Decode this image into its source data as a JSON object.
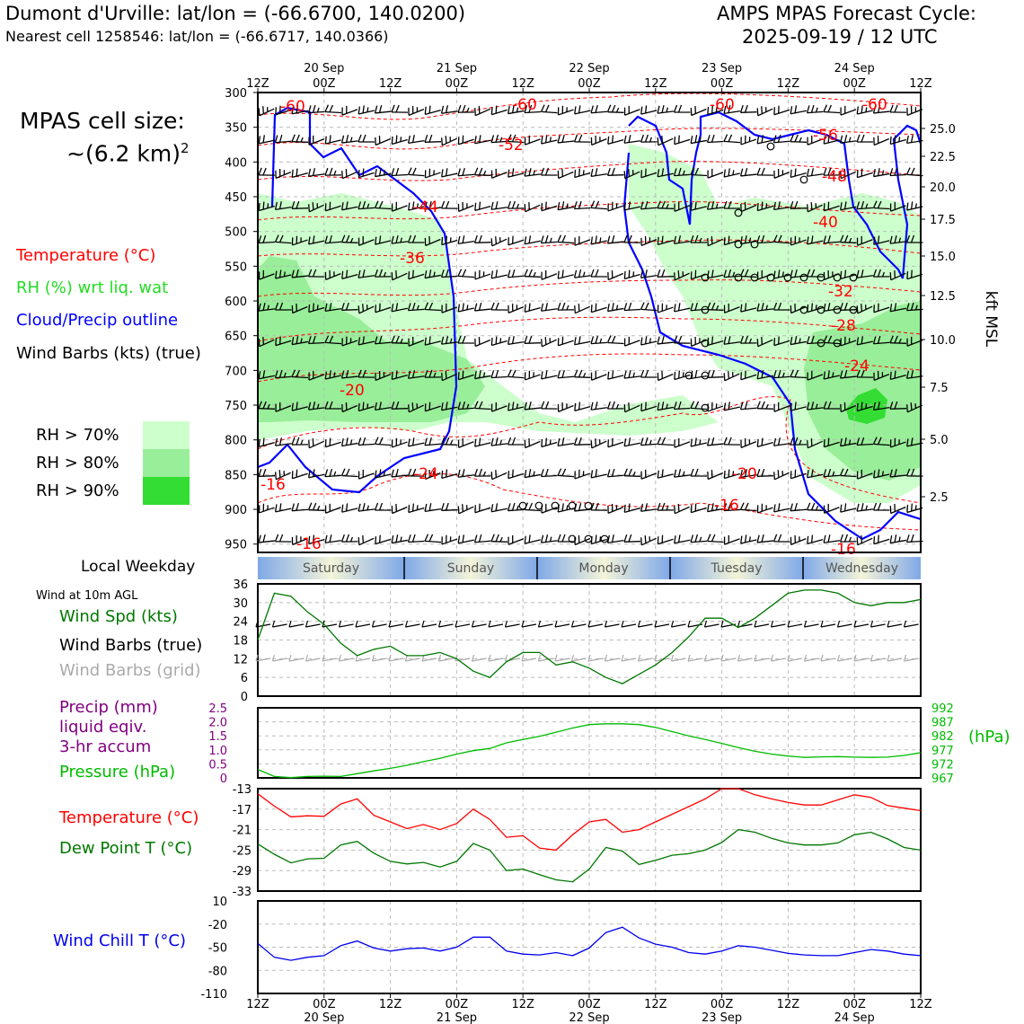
{
  "header": {
    "title": "Dumont d'Urville: lat/lon = (-66.6700, 140.0200)",
    "subtitle": "Nearest cell 1258546: lat/lon = (-66.6717, 140.0366)",
    "cycle_line1": "AMPS MPAS Forecast Cycle:",
    "cycle_line2": "2025-09-19 / 12 UTC"
  },
  "cell": {
    "line1": "MPAS cell size:",
    "line2": "~(6.2 km)",
    "sup": "2"
  },
  "legend": {
    "temperature": "Temperature (°C)",
    "rh": "RH (%) wrt liq. wat",
    "cloud": "Cloud/Precip outline",
    "barbs": "Wind Barbs (kts) (true)",
    "rh70": "RH > 70%",
    "rh80": "RH > 80%",
    "rh90": "RH > 90%"
  },
  "weekday": {
    "label": "Local Weekday",
    "days": [
      "Saturday",
      "Sunday",
      "Monday",
      "Tuesday",
      "Wednesday"
    ]
  },
  "wind_panel": {
    "heading": "Wind at 10m AGL",
    "spd": "Wind Spd (kts)",
    "barbs_true": "Wind Barbs (true)",
    "barbs_grid": "Wind Barbs (grid)"
  },
  "precip_panel": {
    "precip1": "Precip (mm)",
    "precip2": "liquid eqiv.",
    "precip3": "3-hr accum",
    "pressure": "Pressure (hPa)",
    "unit": "(hPa)"
  },
  "temp_panel": {
    "temp": "Temperature (°C)",
    "dew": "Dew Point T (°C)"
  },
  "chill_panel": {
    "label": "Wind Chill T (°C)"
  },
  "colors": {
    "temperature": "#ff0000",
    "rh": "#00cc00",
    "cloud": "#0000ff",
    "wind": "#007700",
    "precip": "#800080",
    "pressure": "#00aa00",
    "dew": "#007700",
    "chill": "#0000ee",
    "rh70": "#ccffcc",
    "rh80": "#99ee99",
    "rh90": "#33dd33"
  },
  "chart_data": [
    {
      "type": "heatmap",
      "x_ticks": [
        "12Z",
        "00Z",
        "12Z",
        "00Z",
        "12Z",
        "00Z",
        "12Z",
        "00Z",
        "12Z",
        "00Z",
        "12Z"
      ],
      "x_dates": [
        "20 Sep",
        "21 Sep",
        "22 Sep",
        "23 Sep",
        "24 Sep"
      ],
      "y_ticks": [
        300,
        350,
        400,
        450,
        500,
        550,
        600,
        650,
        700,
        750,
        800,
        850,
        900,
        950
      ],
      "y2_ticks": [
        "25.0",
        "22.5",
        "20.0",
        "17.5",
        "15.0",
        "12.5",
        "10.0",
        "7.5",
        "5.0",
        "2.5"
      ],
      "y2_label": "kft MSL",
      "temperature_labels": [
        "-60",
        "-60",
        "-60",
        "-60",
        "-56",
        "-52",
        "-48",
        "-44",
        "-40",
        "-36",
        "-32",
        "-28",
        "-24",
        "-24",
        "-20",
        "-20",
        "-16",
        "-16",
        "-16",
        "-16"
      ]
    },
    {
      "type": "line",
      "name": "Wind Spd (kts)",
      "ylim": [
        0,
        36
      ],
      "y_ticks": [
        0,
        6,
        12,
        18,
        24,
        30,
        36
      ],
      "x_hours": [
        0,
        3,
        6,
        9,
        12,
        15,
        18,
        21,
        24,
        27,
        30,
        33,
        36,
        39,
        42,
        45,
        48,
        51,
        54,
        57,
        60,
        63,
        66,
        69,
        72,
        75,
        78,
        81,
        84,
        87,
        90,
        93,
        96,
        99,
        102,
        105,
        108,
        111,
        114,
        117,
        120
      ],
      "values": [
        18,
        33,
        32,
        27,
        23,
        17,
        13,
        15,
        16,
        13,
        13,
        14,
        12,
        8,
        6,
        11,
        14,
        14,
        10,
        11,
        9,
        6,
        4,
        7,
        10,
        14,
        19,
        25,
        25,
        22,
        25,
        29,
        33,
        34,
        34,
        33,
        30,
        29,
        30,
        30,
        31
      ]
    },
    {
      "type": "line",
      "name": "Pressure (hPa)",
      "y_ticks": [
        "0",
        "0.5",
        "1.0",
        "1.5",
        "2.0",
        "2.5"
      ],
      "y2_ticks": [
        "967",
        "972",
        "977",
        "982",
        "987",
        "992"
      ],
      "y2lim": [
        967,
        992
      ],
      "x_hours": [
        0,
        3,
        6,
        9,
        12,
        15,
        18,
        21,
        24,
        27,
        30,
        33,
        36,
        39,
        42,
        45,
        48,
        51,
        54,
        57,
        60,
        63,
        66,
        69,
        72,
        75,
        78,
        81,
        84,
        87,
        90,
        93,
        96,
        99,
        102,
        105,
        108,
        111,
        114,
        117,
        120
      ],
      "values": [
        970,
        967.5,
        967.1,
        967.5,
        967.6,
        967.5,
        968.5,
        969.5,
        970.4,
        971.5,
        972.8,
        974,
        975.5,
        976.7,
        977.5,
        979.5,
        980.7,
        981.8,
        983.3,
        984.8,
        986,
        986.3,
        986.3,
        986,
        985,
        983.5,
        982,
        980.7,
        979.3,
        977.8,
        976.5,
        975.5,
        974.8,
        974.3,
        974.5,
        974.6,
        974.4,
        974.3,
        974.4,
        975,
        976
      ]
    },
    {
      "type": "line",
      "ylim": [
        -33,
        -13
      ],
      "y_ticks": [
        -13,
        -17,
        -21,
        -25,
        -29,
        -33
      ],
      "x_hours": [
        0,
        3,
        6,
        9,
        12,
        15,
        18,
        21,
        24,
        27,
        30,
        33,
        36,
        39,
        42,
        45,
        48,
        51,
        54,
        57,
        60,
        63,
        66,
        69,
        72,
        75,
        78,
        81,
        84,
        87,
        90,
        93,
        96,
        99,
        102,
        105,
        108,
        111,
        114,
        117,
        120
      ],
      "series": [
        {
          "name": "Temperature (°C)",
          "values": [
            -14,
            -16.4,
            -18.5,
            -18.3,
            -18.4,
            -16,
            -15,
            -18.2,
            -19.5,
            -20.8,
            -20,
            -21,
            -19.8,
            -17,
            -19,
            -22.5,
            -22.2,
            -24.6,
            -25,
            -22,
            -19.5,
            -19,
            -21.5,
            -21,
            -19.5,
            -18,
            -16.5,
            -15,
            -13,
            -13,
            -14.2,
            -15,
            -15.7,
            -16.2,
            -16.2,
            -15.2,
            -14.2,
            -14.7,
            -16.3,
            -16.8,
            -17.3
          ]
        },
        {
          "name": "Dew Point T (°C)",
          "values": [
            -23.8,
            -25.8,
            -27.5,
            -26.7,
            -26.6,
            -24,
            -23.3,
            -25.6,
            -27.2,
            -27.7,
            -27.4,
            -28.3,
            -27.2,
            -23.7,
            -25,
            -29,
            -28.7,
            -29.8,
            -30.8,
            -31.2,
            -28.7,
            -24.5,
            -25.2,
            -27.8,
            -27,
            -26,
            -25.7,
            -25,
            -23.5,
            -21,
            -21.5,
            -22.7,
            -23.6,
            -24,
            -24,
            -23.6,
            -22,
            -21.5,
            -22.8,
            -24.5,
            -25
          ]
        }
      ]
    },
    {
      "type": "line",
      "name": "Wind Chill T (°C)",
      "ylim": [
        -110,
        10
      ],
      "y_ticks": [
        10,
        -20,
        -50,
        -80,
        -110
      ],
      "x_hours": [
        0,
        3,
        6,
        9,
        12,
        15,
        18,
        21,
        24,
        27,
        30,
        33,
        36,
        39,
        42,
        45,
        48,
        51,
        54,
        57,
        60,
        63,
        66,
        69,
        72,
        75,
        78,
        81,
        84,
        87,
        90,
        93,
        96,
        99,
        102,
        105,
        108,
        111,
        114,
        117,
        120
      ],
      "values": [
        -45,
        -63,
        -67,
        -63,
        -61,
        -48,
        -42,
        -51,
        -55,
        -52,
        -51,
        -55,
        -50,
        -37,
        -37,
        -55,
        -59,
        -60,
        -57,
        -61,
        -51,
        -31,
        -24,
        -38,
        -46,
        -50,
        -57,
        -59,
        -55,
        -48,
        -50,
        -54,
        -58,
        -60,
        -61,
        -61,
        -57,
        -53,
        -55,
        -59,
        -61
      ]
    }
  ]
}
